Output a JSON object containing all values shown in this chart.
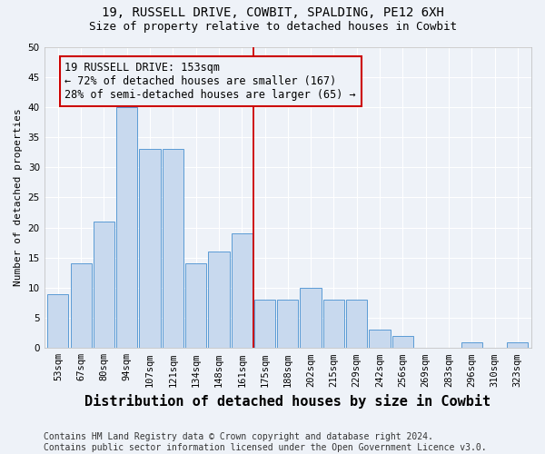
{
  "title1": "19, RUSSELL DRIVE, COWBIT, SPALDING, PE12 6XH",
  "title2": "Size of property relative to detached houses in Cowbit",
  "xlabel": "Distribution of detached houses by size in Cowbit",
  "ylabel": "Number of detached properties",
  "categories": [
    "53sqm",
    "67sqm",
    "80sqm",
    "94sqm",
    "107sqm",
    "121sqm",
    "134sqm",
    "148sqm",
    "161sqm",
    "175sqm",
    "188sqm",
    "202sqm",
    "215sqm",
    "229sqm",
    "242sqm",
    "256sqm",
    "269sqm",
    "283sqm",
    "296sqm",
    "310sqm",
    "323sqm"
  ],
  "values": [
    9,
    14,
    21,
    40,
    33,
    33,
    14,
    16,
    19,
    8,
    8,
    10,
    8,
    8,
    3,
    2,
    0,
    0,
    1,
    0,
    1
  ],
  "bar_color": "#c8d9ee",
  "bar_edge_color": "#5b9bd5",
  "vline_x": 8.5,
  "vline_color": "#cc0000",
  "annotation_text": "19 RUSSELL DRIVE: 153sqm\n← 72% of detached houses are smaller (167)\n28% of semi-detached houses are larger (65) →",
  "annotation_box_color": "#cc0000",
  "ylim": [
    0,
    50
  ],
  "yticks": [
    0,
    5,
    10,
    15,
    20,
    25,
    30,
    35,
    40,
    45,
    50
  ],
  "footer": "Contains HM Land Registry data © Crown copyright and database right 2024.\nContains public sector information licensed under the Open Government Licence v3.0.",
  "bg_color": "#eef2f8",
  "grid_color": "#ffffff",
  "title1_fontsize": 10,
  "title2_fontsize": 9,
  "xlabel_fontsize": 11,
  "ylabel_fontsize": 8,
  "tick_fontsize": 7.5,
  "annotation_fontsize": 8.5,
  "footer_fontsize": 7
}
